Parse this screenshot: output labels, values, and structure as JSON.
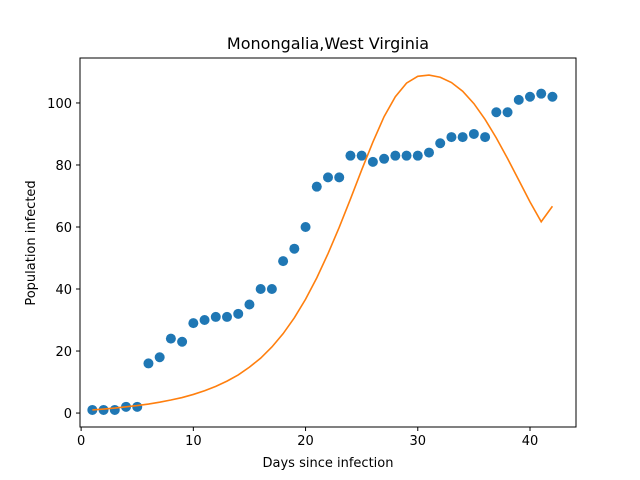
{
  "chart_data": {
    "type": "scatter",
    "title": "Monongalia,West Virginia",
    "xlabel": "Days since infection",
    "ylabel": "Population infected",
    "xlim": [
      -0.1,
      44.1
    ],
    "ylim": [
      -4.5,
      114.5
    ],
    "xticks": [
      0,
      10,
      20,
      30,
      40
    ],
    "yticks": [
      0,
      20,
      40,
      60,
      80,
      100
    ],
    "grid": false,
    "series": [
      {
        "kind": "scatter",
        "color": "#1f77b4",
        "x": [
          1,
          2,
          3,
          4,
          5,
          6,
          7,
          8,
          9,
          10,
          11,
          12,
          13,
          14,
          15,
          16,
          17,
          18,
          19,
          20,
          21,
          22,
          23,
          24,
          25,
          26,
          27,
          28,
          29,
          30,
          31,
          32,
          33,
          34,
          35,
          36,
          37,
          38,
          39,
          40,
          41,
          42
        ],
        "y": [
          1,
          1,
          1,
          2,
          2,
          16,
          18,
          24,
          23,
          29,
          30,
          31,
          31,
          32,
          35,
          40,
          40,
          49,
          53,
          60,
          73,
          76,
          76,
          83,
          83,
          81,
          82,
          83,
          83,
          83,
          84,
          87,
          89,
          89,
          90,
          89,
          97,
          97,
          101,
          102,
          103,
          102
        ]
      },
      {
        "kind": "line",
        "color": "#ff7f0e",
        "x": [
          1,
          2,
          3,
          4,
          5,
          6,
          7,
          8,
          9,
          10,
          11,
          12,
          13,
          14,
          15,
          16,
          17,
          18,
          19,
          20,
          21,
          22,
          23,
          24,
          25,
          26,
          27,
          28,
          29,
          30,
          31,
          32,
          33,
          34,
          35,
          36,
          37,
          38,
          39,
          40,
          41,
          42
        ],
        "y": [
          1.0,
          1.3,
          1.6,
          2.0,
          2.4,
          2.9,
          3.5,
          4.2,
          5.0,
          6.0,
          7.2,
          8.6,
          10.3,
          12.3,
          14.8,
          17.7,
          21.3,
          25.6,
          30.7,
          36.7,
          43.6,
          51.4,
          59.9,
          69.0,
          78.4,
          87.4,
          95.6,
          102.0,
          106.4,
          108.6,
          109.0,
          108.3,
          106.6,
          103.8,
          99.8,
          94.7,
          88.7,
          82.1,
          75.1,
          68.1,
          61.7,
          66.7
        ]
      }
    ]
  }
}
